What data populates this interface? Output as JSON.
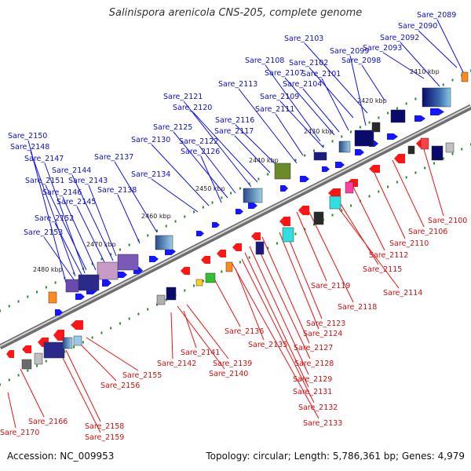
{
  "title": "Salinispora arenicola CNS-205, complete genome",
  "footer": {
    "accession": "Accession: NC_009953",
    "topology": "Topology: circular; Length: 5,786,361 bp; Genes: 4,979"
  },
  "ticks": [
    "2410 kbp",
    "2420 kbp",
    "2430 kbp",
    "2440 kbp",
    "2450 kbp",
    "2460 kbp",
    "2470 kbp",
    "2480 kbp"
  ],
  "upper_labels": [
    "Sare_2089",
    "Sare_2090",
    "Sare_2092",
    "Sare_2093",
    "Sare_2098",
    "Sare_2099",
    "Sare_2101",
    "Sare_2102",
    "Sare_2103",
    "Sare_2104",
    "Sare_2107",
    "Sare_2108",
    "Sare_2109",
    "Sare_2111",
    "Sare_2113",
    "Sare_2116",
    "Sare_2117",
    "Sare_2120",
    "Sare_2121",
    "Sare_2122",
    "Sare_2125",
    "Sare_2126",
    "Sare_2130",
    "Sare_2134",
    "Sare_2137",
    "Sare_2138",
    "Sare_2143",
    "Sare_2144",
    "Sare_2145",
    "Sare_2146",
    "Sare_2147",
    "Sare_2148",
    "Sare_2150",
    "Sare_2151",
    "Sare_2152",
    "Sare_2153"
  ],
  "lower_labels": [
    "Sare_2100",
    "Sare_2106",
    "Sare_2110",
    "Sare_2112",
    "Sare_2114",
    "Sare_2115",
    "Sare_2118",
    "Sare_2119",
    "Sare_2123",
    "Sare_2124",
    "Sare_2127",
    "Sare_2128",
    "Sare_2129",
    "Sare_2131",
    "Sare_2132",
    "Sare_2133",
    "Sare_2135",
    "Sare_2136",
    "Sare_2139",
    "Sare_2140",
    "Sare_2141",
    "Sare_2142",
    "Sare_2155",
    "Sare_2156",
    "Sare_2158",
    "Sare_2159",
    "Sare_2166",
    "Sare_2170"
  ],
  "colors": {
    "forward_strand": "#1515ff",
    "reverse_strand": "#ff1515",
    "upper_leader": "#1010ee",
    "lower_leader": "#ee1010",
    "backbone": "#8a8a8a",
    "tick_marks": "#2a8a2a"
  }
}
